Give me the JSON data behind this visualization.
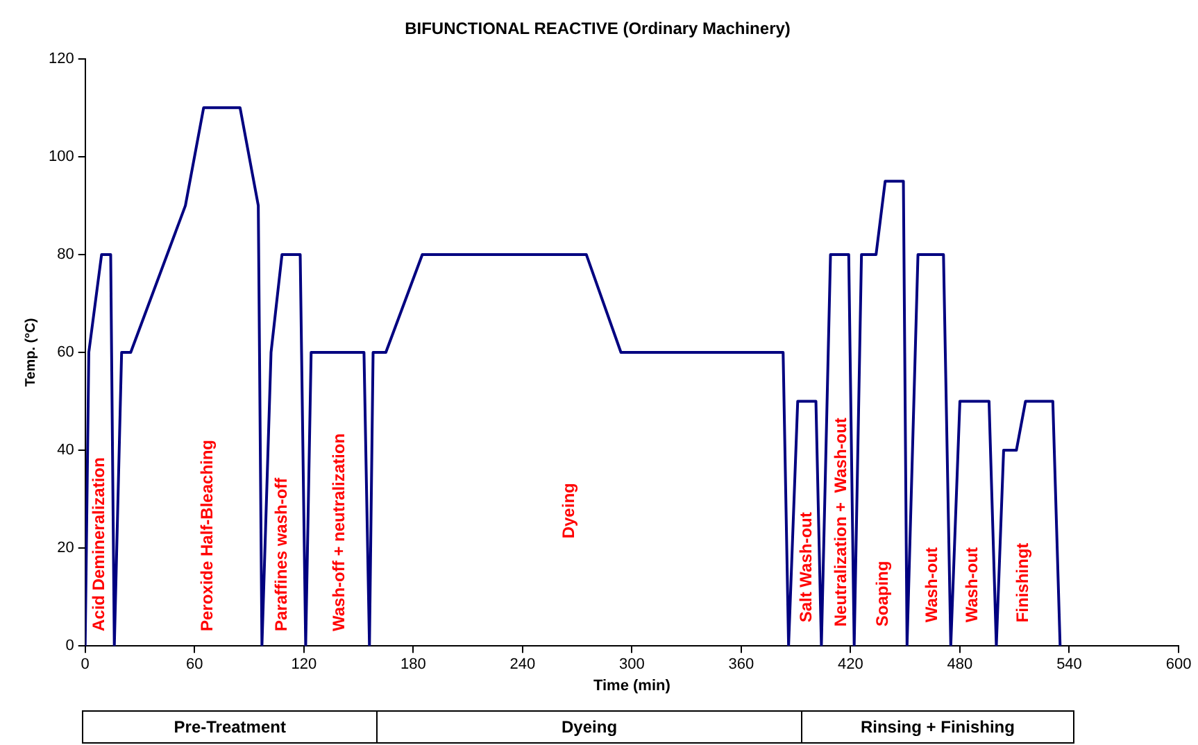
{
  "chart_data": {
    "type": "line",
    "title": "BIFUNCTIONAL REACTIVE (Ordinary Machinery)",
    "xlabel": "Time (min)",
    "ylabel": "Temp. (°C)",
    "series": [
      {
        "color": "#000080",
        "x": [
          0,
          2,
          9,
          14,
          16,
          20,
          25,
          55,
          65,
          85,
          95,
          97,
          102,
          108,
          118,
          121,
          124,
          153,
          156,
          158,
          165,
          185,
          275,
          294,
          383,
          386,
          391,
          401,
          404,
          409,
          419,
          422,
          426,
          434,
          439,
          449,
          451,
          457,
          471,
          475,
          480,
          496,
          500,
          504,
          511,
          516,
          531,
          535
        ],
        "values": [
          0,
          60,
          80,
          80,
          0,
          60,
          60,
          90,
          110,
          110,
          90,
          0,
          60,
          80,
          80,
          0,
          60,
          60,
          0,
          60,
          60,
          80,
          80,
          60,
          60,
          0,
          50,
          50,
          0,
          80,
          80,
          0,
          80,
          80,
          95,
          95,
          0,
          80,
          80,
          0,
          50,
          50,
          0,
          40,
          40,
          50,
          50,
          0
        ]
      }
    ],
    "xlim": [
      0,
      600
    ],
    "xticks": [
      0,
      60,
      120,
      180,
      240,
      300,
      360,
      420,
      480,
      540,
      600
    ],
    "ylim": [
      0,
      120
    ],
    "yticks": [
      0,
      20,
      40,
      60,
      80,
      100,
      120
    ],
    "grid": false,
    "legend": false,
    "marker": "none",
    "line_style": "solid",
    "annotations": [
      "Acid Demineralization",
      "Peroxide Half-Bleaching",
      "Paraffines wash-off",
      "Wash-off + neutralization",
      "Dyeing",
      "Salt Wash-out",
      "Neutralization +  Wash-out",
      "Soaping",
      "Wash-out",
      "Wash-out",
      "Finishingt",
      "Pre-Treatment",
      "Dyeing",
      "Rinsing + Finishing"
    ]
  }
}
